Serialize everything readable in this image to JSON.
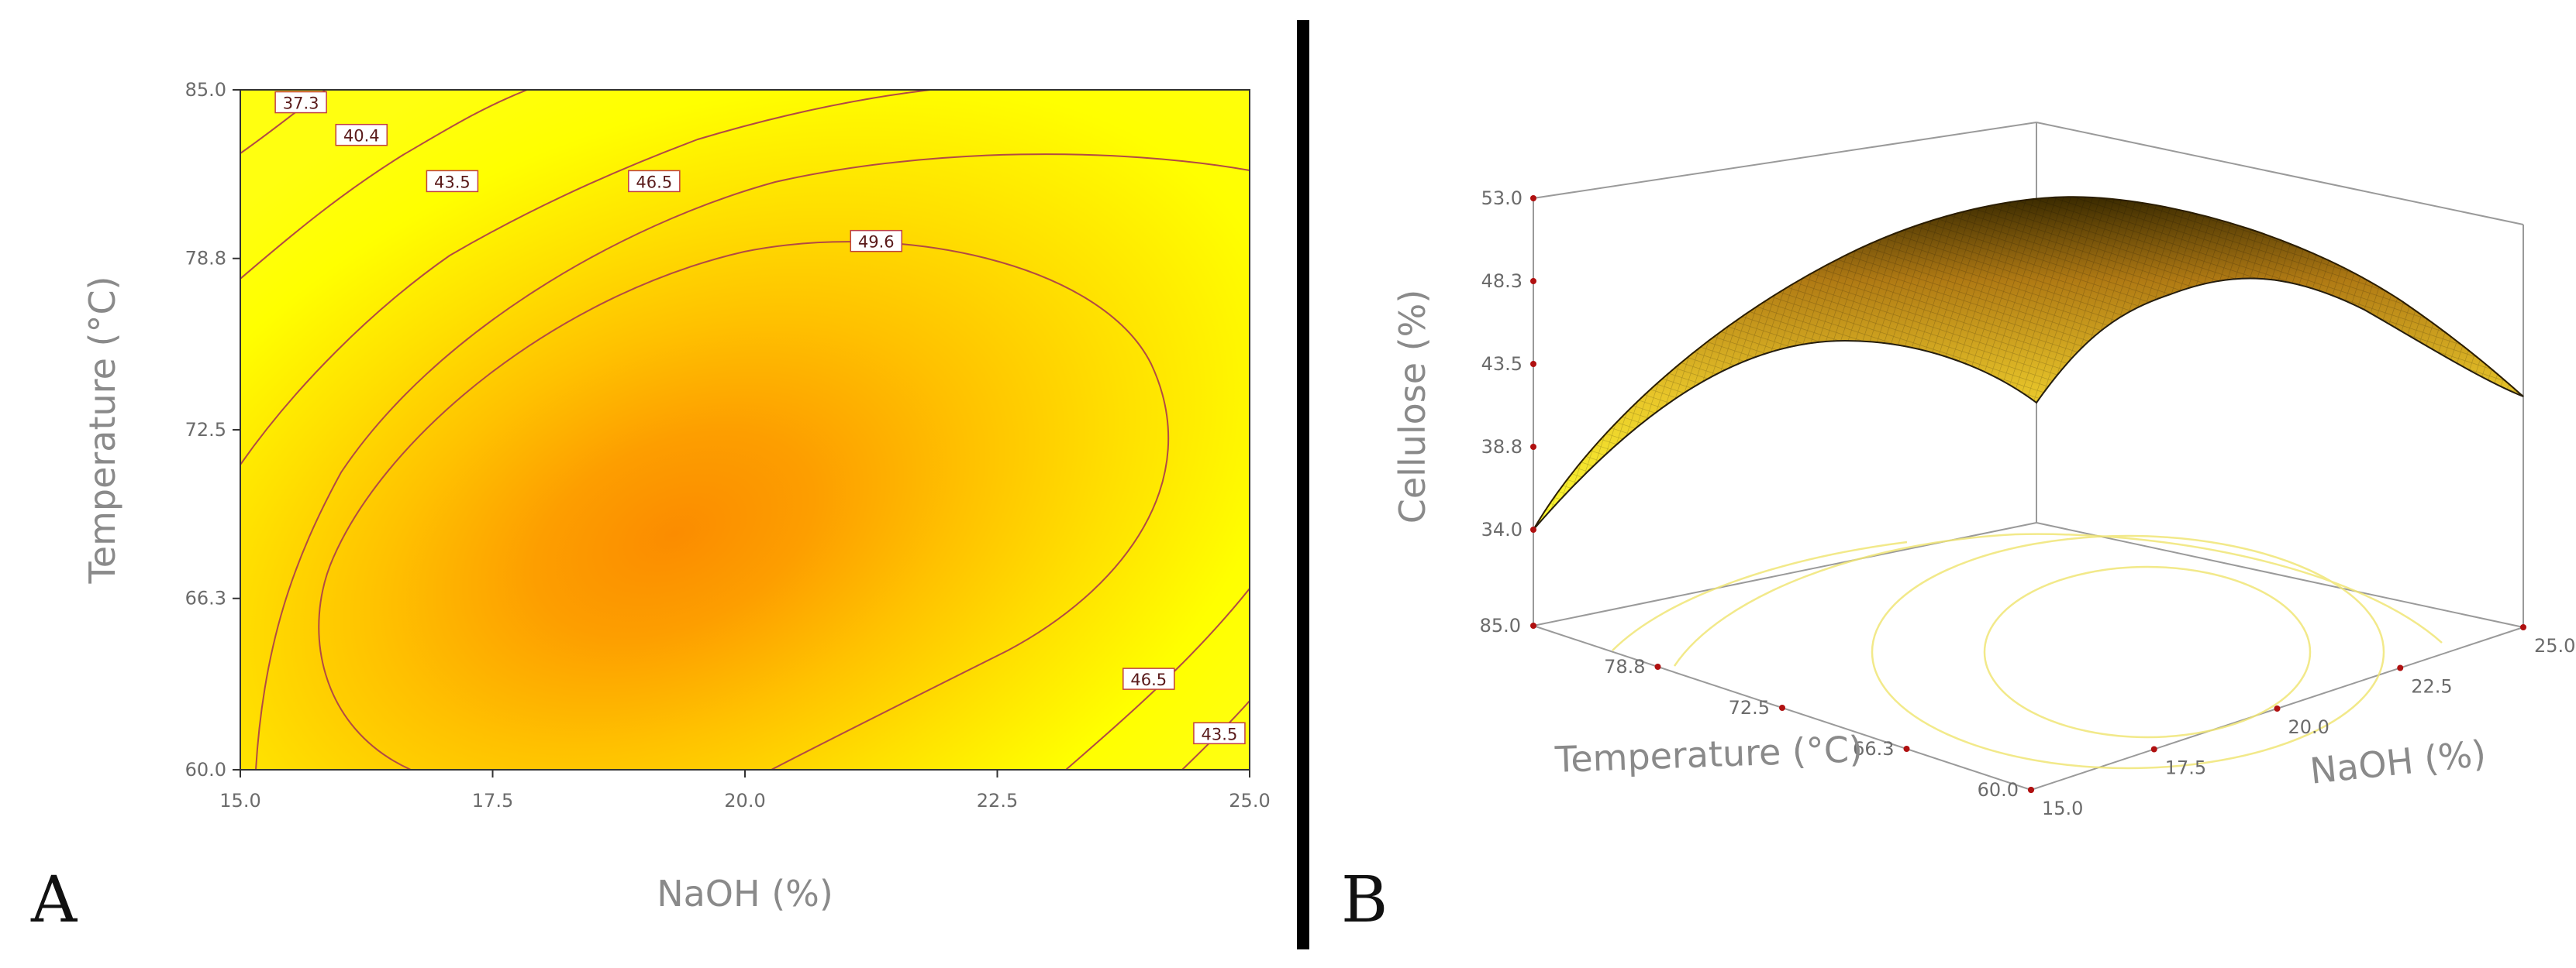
{
  "chart_data": [
    {
      "panel": "A",
      "type": "contour",
      "xlabel": "NaOH (%)",
      "ylabel": "Temperature (°C)",
      "xlim": [
        15.0,
        25.0
      ],
      "ylim": [
        60.0,
        85.0
      ],
      "xticks": [
        "15.0",
        "17.5",
        "20.0",
        "22.5",
        "25.0"
      ],
      "yticks": [
        "60.0",
        "66.3",
        "72.5",
        "78.8",
        "85.0"
      ],
      "contour_labels": [
        {
          "text": "37.3",
          "x": 15.6,
          "y": 84.5
        },
        {
          "text": "40.4",
          "x": 16.2,
          "y": 83.3
        },
        {
          "text": "43.5",
          "x": 17.1,
          "y": 81.6
        },
        {
          "text": "46.5",
          "x": 19.1,
          "y": 81.6
        },
        {
          "text": "49.6",
          "x": 21.3,
          "y": 79.4
        },
        {
          "text": "46.5",
          "x": 24.0,
          "y": 63.3
        },
        {
          "text": "43.5",
          "x": 24.7,
          "y": 61.3
        }
      ]
    },
    {
      "panel": "B",
      "type": "surface3d",
      "zlabel": "Cellulose (%)",
      "xlabel": "NaOH (%)",
      "ylabel": "Temperature (°C)",
      "zticks": [
        "53.0",
        "48.3",
        "43.5",
        "38.8",
        "34.0"
      ],
      "yticks": [
        "85.0",
        "78.8",
        "72.5",
        "66.3",
        "60.0"
      ],
      "xticks": [
        "15.0",
        "17.5",
        "20.0",
        "22.5",
        "25.0"
      ]
    }
  ],
  "panel_labels": {
    "a": "A",
    "b": "B"
  }
}
